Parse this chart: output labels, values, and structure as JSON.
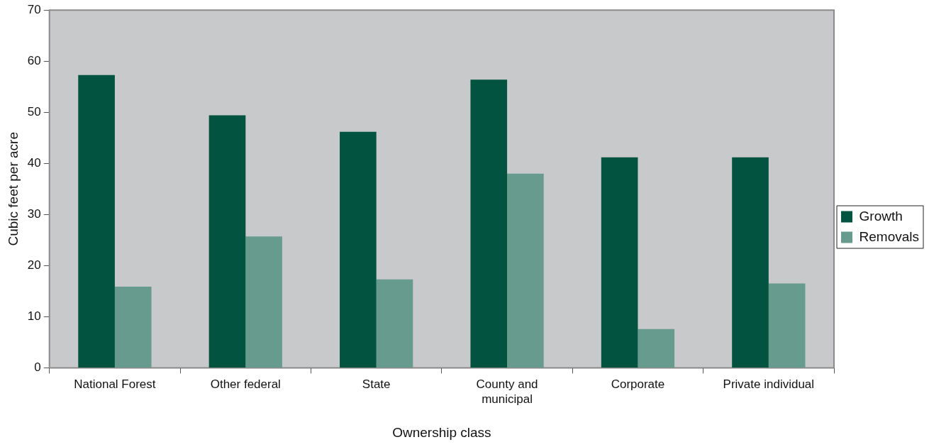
{
  "chart_data": {
    "type": "bar",
    "xlabel": "Ownership class",
    "ylabel": "Cubic feet per acre",
    "categories": [
      "National Forest",
      "Other federal",
      "State",
      "County and municipal",
      "Corporate",
      "Private individual"
    ],
    "series": [
      {
        "name": "Growth",
        "color": "#02533f",
        "values": [
          57.3,
          49.4,
          46.2,
          56.4,
          41.2,
          41.2
        ]
      },
      {
        "name": "Removals",
        "color": "#679b8e",
        "values": [
          15.9,
          25.7,
          17.3,
          38.0,
          7.6,
          16.5
        ]
      }
    ],
    "ylim": [
      0,
      70
    ],
    "yticks": [
      0,
      10,
      20,
      30,
      40,
      50,
      60,
      70
    ],
    "legend": "right"
  }
}
